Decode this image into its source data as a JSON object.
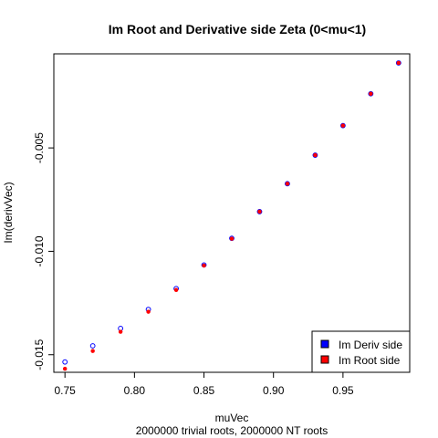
{
  "chart_data": {
    "type": "scatter",
    "title": "Im Root and Derivative side Zeta (0<mu<1)",
    "xlabel": "muVec",
    "ylabel": "Im(derivVec)",
    "subtitle": "2000000 trivial roots, 2000000 NT roots",
    "xlim": [
      0.742,
      0.998
    ],
    "ylim": [
      -0.01585,
      -0.00045
    ],
    "x_ticks": [
      0.75,
      0.8,
      0.85,
      0.9,
      0.95
    ],
    "x_tick_labels": [
      "0.75",
      "0.80",
      "0.85",
      "0.90",
      "0.95"
    ],
    "y_ticks": [
      -0.015,
      -0.01,
      -0.005
    ],
    "y_tick_labels": [
      "-0.015",
      "-0.010",
      "-0.005"
    ],
    "grid": false,
    "legend_position": "bottom-right",
    "series": [
      {
        "name": "Im Deriv side",
        "color": "#0000ff",
        "marker": "open-circle",
        "x": [
          0.75,
          0.77,
          0.79,
          0.81,
          0.83,
          0.85,
          0.87,
          0.89,
          0.91,
          0.93,
          0.95,
          0.97,
          0.99
        ],
        "y": [
          -0.01535,
          -0.01457,
          -0.01373,
          -0.01281,
          -0.0118,
          -0.01066,
          -0.00937,
          -0.00808,
          -0.00673,
          -0.00535,
          -0.00392,
          -0.00238,
          -0.00089
        ]
      },
      {
        "name": "Im Root side",
        "color": "#ff0000",
        "marker": "filled-circle",
        "x": [
          0.75,
          0.77,
          0.79,
          0.81,
          0.83,
          0.85,
          0.87,
          0.89,
          0.91,
          0.93,
          0.95,
          0.97,
          0.99
        ],
        "y": [
          -0.01568,
          -0.01482,
          -0.01389,
          -0.01292,
          -0.01187,
          -0.01069,
          -0.00939,
          -0.00808,
          -0.00673,
          -0.00535,
          -0.00392,
          -0.00238,
          -0.00089
        ]
      }
    ],
    "legend": {
      "entries": [
        {
          "label": "Im Deriv side",
          "color": "#0000ff"
        },
        {
          "label": "Im Root side",
          "color": "#ff0000"
        }
      ]
    }
  }
}
